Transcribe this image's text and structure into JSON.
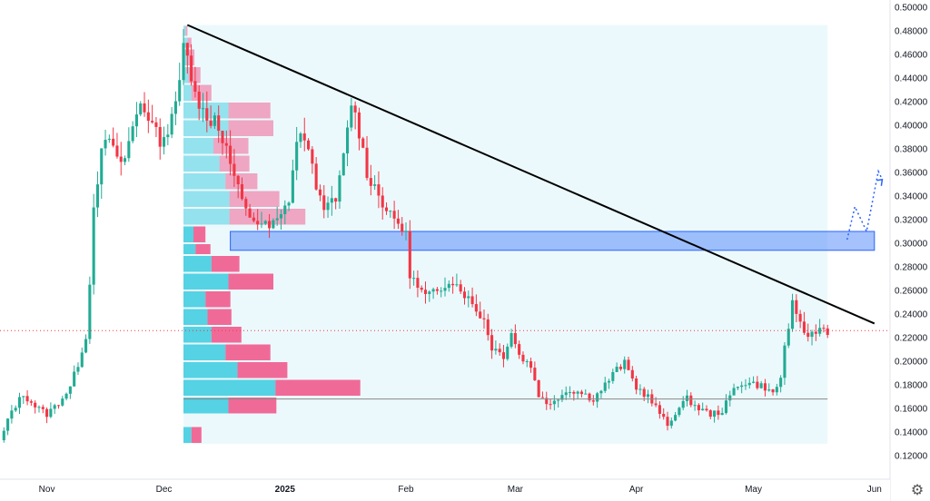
{
  "chart_data": {
    "type": "candlestick",
    "y_axis": {
      "side": "right",
      "range": [
        0.11,
        0.5
      ],
      "ticks": [
        "0.50000",
        "0.48000",
        "0.46000",
        "0.44000",
        "0.42000",
        "0.40000",
        "0.38000",
        "0.36000",
        "0.34000",
        "0.32000",
        "0.30000",
        "0.28000",
        "0.26000",
        "0.24000",
        "0.22000",
        "0.20000",
        "0.18000",
        "0.16000",
        "0.14000",
        "0.12000"
      ]
    },
    "x_axis": {
      "range": [
        "2024-10-20",
        "2025-06-05"
      ],
      "ticks": [
        {
          "label": "Nov",
          "date": "2024-11-01",
          "bold": false
        },
        {
          "label": "Dec",
          "date": "2024-12-01",
          "bold": false
        },
        {
          "label": "2025",
          "date": "2025-01-01",
          "bold": true
        },
        {
          "label": "Feb",
          "date": "2025-02-01",
          "bold": false
        },
        {
          "label": "Mar",
          "date": "2025-03-01",
          "bold": false
        },
        {
          "label": "Apr",
          "date": "2025-04-01",
          "bold": false
        },
        {
          "label": "May",
          "date": "2025-05-01",
          "bold": false
        },
        {
          "label": "Jun",
          "date": "2025-06-01",
          "bold": false
        }
      ]
    },
    "colors": {
      "up": "#22ab94",
      "down": "#f23645",
      "trendline": "#000000",
      "zone": "#5b8ff9",
      "projection": "#2962ff",
      "vp_up": "#4dd0e1",
      "vp_down": "#f06292"
    },
    "price_keypoints": [
      [
        "2024-10-20",
        0.132
      ],
      [
        "2024-10-23",
        0.158
      ],
      [
        "2024-10-26",
        0.172
      ],
      [
        "2024-10-29",
        0.162
      ],
      [
        "2024-11-01",
        0.155
      ],
      [
        "2024-11-04",
        0.165
      ],
      [
        "2024-11-07",
        0.178
      ],
      [
        "2024-11-09",
        0.198
      ],
      [
        "2024-11-11",
        0.222
      ],
      [
        "2024-11-12",
        0.265
      ],
      [
        "2024-11-13",
        0.335
      ],
      [
        "2024-11-15",
        0.375
      ],
      [
        "2024-11-17",
        0.39
      ],
      [
        "2024-11-19",
        0.368
      ],
      [
        "2024-11-21",
        0.372
      ],
      [
        "2024-11-23",
        0.398
      ],
      [
        "2024-11-25",
        0.42
      ],
      [
        "2024-11-27",
        0.408
      ],
      [
        "2024-11-29",
        0.392
      ],
      [
        "2024-12-01",
        0.385
      ],
      [
        "2024-12-03",
        0.412
      ],
      [
        "2024-12-05",
        0.432
      ],
      [
        "2024-12-06",
        0.468
      ],
      [
        "2024-12-08",
        0.445
      ],
      [
        "2024-12-10",
        0.42
      ],
      [
        "2024-12-12",
        0.402
      ],
      [
        "2024-12-14",
        0.408
      ],
      [
        "2024-12-16",
        0.39
      ],
      [
        "2024-12-18",
        0.368
      ],
      [
        "2024-12-20",
        0.345
      ],
      [
        "2024-12-22",
        0.326
      ],
      [
        "2024-12-25",
        0.318
      ],
      [
        "2024-12-28",
        0.313
      ],
      [
        "2024-12-31",
        0.322
      ],
      [
        "2025-01-02",
        0.338
      ],
      [
        "2025-01-04",
        0.386
      ],
      [
        "2025-01-06",
        0.392
      ],
      [
        "2025-01-08",
        0.362
      ],
      [
        "2025-01-10",
        0.338
      ],
      [
        "2025-01-12",
        0.33
      ],
      [
        "2025-01-14",
        0.336
      ],
      [
        "2025-01-16",
        0.372
      ],
      [
        "2025-01-18",
        0.42
      ],
      [
        "2025-01-20",
        0.395
      ],
      [
        "2025-01-22",
        0.36
      ],
      [
        "2025-01-24",
        0.348
      ],
      [
        "2025-01-26",
        0.335
      ],
      [
        "2025-01-28",
        0.322
      ],
      [
        "2025-01-30",
        0.318
      ],
      [
        "2025-02-01",
        0.306
      ],
      [
        "2025-02-02",
        0.275
      ],
      [
        "2025-02-04",
        0.262
      ],
      [
        "2025-02-06",
        0.255
      ],
      [
        "2025-02-09",
        0.258
      ],
      [
        "2025-02-12",
        0.27
      ],
      [
        "2025-02-15",
        0.262
      ],
      [
        "2025-02-18",
        0.248
      ],
      [
        "2025-02-21",
        0.235
      ],
      [
        "2025-02-23",
        0.212
      ],
      [
        "2025-02-26",
        0.205
      ],
      [
        "2025-02-28",
        0.225
      ],
      [
        "2025-03-02",
        0.205
      ],
      [
        "2025-03-05",
        0.196
      ],
      [
        "2025-03-07",
        0.172
      ],
      [
        "2025-03-09",
        0.163
      ],
      [
        "2025-03-12",
        0.17
      ],
      [
        "2025-03-15",
        0.176
      ],
      [
        "2025-03-18",
        0.173
      ],
      [
        "2025-03-21",
        0.168
      ],
      [
        "2025-03-24",
        0.18
      ],
      [
        "2025-03-27",
        0.193
      ],
      [
        "2025-03-29",
        0.198
      ],
      [
        "2025-04-01",
        0.178
      ],
      [
        "2025-04-04",
        0.17
      ],
      [
        "2025-04-07",
        0.156
      ],
      [
        "2025-04-09",
        0.145
      ],
      [
        "2025-04-11",
        0.157
      ],
      [
        "2025-04-14",
        0.168
      ],
      [
        "2025-04-17",
        0.16
      ],
      [
        "2025-04-20",
        0.155
      ],
      [
        "2025-04-23",
        0.158
      ],
      [
        "2025-04-26",
        0.176
      ],
      [
        "2025-04-28",
        0.182
      ],
      [
        "2025-05-01",
        0.181
      ],
      [
        "2025-05-04",
        0.178
      ],
      [
        "2025-05-06",
        0.172
      ],
      [
        "2025-05-08",
        0.186
      ],
      [
        "2025-05-09",
        0.212
      ],
      [
        "2025-05-11",
        0.248
      ],
      [
        "2025-05-12",
        0.236
      ],
      [
        "2025-05-14",
        0.225
      ],
      [
        "2025-05-16",
        0.222
      ],
      [
        "2025-05-18",
        0.228
      ],
      [
        "2025-05-20",
        0.226
      ]
    ],
    "last_price": 0.226,
    "trendline": {
      "from": [
        "2024-12-07",
        0.485
      ],
      "to": [
        "2025-06-01",
        0.232
      ]
    },
    "resistance_zone": {
      "from": "2024-12-18",
      "to": "2025-06-01",
      "y_low": 0.294,
      "y_high": 0.31
    },
    "projection_path": [
      [
        "2025-05-25",
        0.303
      ],
      [
        "2025-05-27",
        0.331
      ],
      [
        "2025-05-30",
        0.31
      ],
      [
        "2025-06-02",
        0.361
      ],
      [
        "2025-06-03",
        0.354
      ]
    ],
    "poc_line": {
      "from": "2024-12-06",
      "to": "2025-05-20",
      "y": 0.168
    },
    "volume_profile": {
      "range_from": "2024-12-06",
      "range_to": "2025-05-20",
      "y_top": 0.485,
      "y_bottom": 0.13,
      "rows": [
        {
          "y_low": 0.13,
          "y_high": 0.145,
          "up": 8,
          "down": 10
        },
        {
          "y_low": 0.155,
          "y_high": 0.17,
          "up": 45,
          "down": 48
        },
        {
          "y_low": 0.17,
          "y_high": 0.185,
          "up": 92,
          "down": 85
        },
        {
          "y_low": 0.185,
          "y_high": 0.2,
          "up": 54,
          "down": 50
        },
        {
          "y_low": 0.2,
          "y_high": 0.215,
          "up": 42,
          "down": 45
        },
        {
          "y_low": 0.215,
          "y_high": 0.23,
          "up": 28,
          "down": 30
        },
        {
          "y_low": 0.23,
          "y_high": 0.245,
          "up": 24,
          "down": 24
        },
        {
          "y_low": 0.245,
          "y_high": 0.26,
          "up": 22,
          "down": 25
        },
        {
          "y_low": 0.26,
          "y_high": 0.275,
          "up": 45,
          "down": 45
        },
        {
          "y_low": 0.275,
          "y_high": 0.29,
          "up": 28,
          "down": 28
        },
        {
          "y_low": 0.29,
          "y_high": 0.3,
          "up": 12,
          "down": 15
        },
        {
          "y_low": 0.3,
          "y_high": 0.315,
          "up": 10,
          "down": 12
        },
        {
          "y_low": 0.315,
          "y_high": 0.33,
          "up": 46,
          "down": 76
        },
        {
          "y_low": 0.33,
          "y_high": 0.345,
          "up": 46,
          "down": 50
        },
        {
          "y_low": 0.345,
          "y_high": 0.36,
          "up": 42,
          "down": 32
        },
        {
          "y_low": 0.36,
          "y_high": 0.375,
          "up": 36,
          "down": 30
        },
        {
          "y_low": 0.375,
          "y_high": 0.39,
          "up": 30,
          "down": 35
        },
        {
          "y_low": 0.39,
          "y_high": 0.405,
          "up": 45,
          "down": 45
        },
        {
          "y_low": 0.405,
          "y_high": 0.42,
          "up": 45,
          "down": 42
        },
        {
          "y_low": 0.42,
          "y_high": 0.435,
          "up": 8,
          "down": 20
        },
        {
          "y_low": 0.435,
          "y_high": 0.45,
          "up": 5,
          "down": 12
        },
        {
          "y_low": 0.45,
          "y_high": 0.465,
          "up": 4,
          "down": 7
        },
        {
          "y_low": 0.465,
          "y_high": 0.475,
          "up": 4,
          "down": 4
        },
        {
          "y_low": 0.475,
          "y_high": 0.485,
          "up": 2,
          "down": 2
        }
      ]
    }
  },
  "ui": {
    "settings_icon": "gear-icon"
  }
}
